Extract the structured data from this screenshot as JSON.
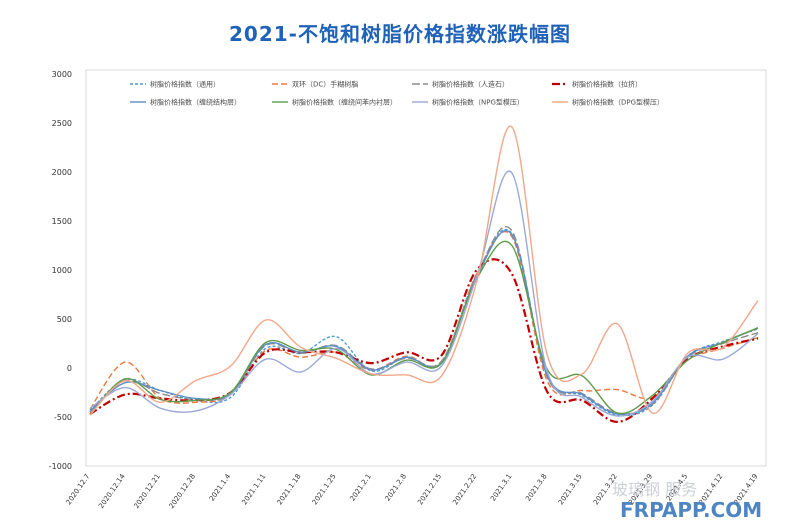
{
  "chart_data": {
    "type": "line",
    "title": "2021-不饱和树脂价格指数涨跌幅图",
    "ylim": [
      -1000,
      3000
    ],
    "yticks": [
      -1000,
      -500,
      0,
      500,
      1000,
      1500,
      2000,
      2500,
      3000
    ],
    "grid": false,
    "legend_position": "top",
    "categories": [
      "2020.12.7",
      "2020.12.14",
      "2020.12.21",
      "2020.12.28",
      "2021.1.4",
      "2021.1.11",
      "2021.1.18",
      "2021.1.25",
      "2021.2.1",
      "2021.2.8",
      "2021.2.15",
      "2021.2.22",
      "2021.3.1",
      "2021.3.8",
      "2021.3.15",
      "2021.3.22",
      "2021.3.29",
      "2021.4.5",
      "2021.4.12",
      "2021.4.19"
    ],
    "series": [
      {
        "name": "树脂价格指数（通用）",
        "color": "#4f9ad6",
        "dash": "3,2",
        "values": [
          -430,
          -120,
          -230,
          -330,
          -300,
          200,
          150,
          320,
          -30,
          110,
          60,
          950,
          1370,
          -80,
          -280,
          -480,
          -380,
          120,
          270,
          400
        ]
      },
      {
        "name": "双环（DC）手糊树脂",
        "color": "#e87b45",
        "dash": "6,3",
        "values": [
          -420,
          60,
          -310,
          -350,
          -270,
          180,
          110,
          160,
          -20,
          120,
          50,
          960,
          1340,
          -130,
          -230,
          -220,
          -300,
          80,
          200,
          310
        ]
      },
      {
        "name": "树脂价格指数（人造石）",
        "color": "#8c8c8c",
        "dash": "8,3",
        "values": [
          -450,
          -130,
          -260,
          -320,
          -270,
          230,
          150,
          230,
          -10,
          100,
          70,
          950,
          1400,
          -90,
          -260,
          -460,
          -370,
          110,
          250,
          360
        ]
      },
      {
        "name": "树脂价格指数（拉挤）",
        "color": "#c00000",
        "dash": "8,3,2,3",
        "values": [
          -470,
          -270,
          -310,
          -330,
          -250,
          160,
          160,
          160,
          50,
          160,
          130,
          1000,
          960,
          -240,
          -330,
          -550,
          -310,
          90,
          220,
          300
        ]
      },
      {
        "name": "树脂价格指数（缠绕结构层）",
        "color": "#5b8fc9",
        "dash": "",
        "values": [
          -440,
          -150,
          -230,
          -310,
          -260,
          240,
          160,
          220,
          -20,
          110,
          50,
          930,
          1360,
          -70,
          -270,
          -470,
          -360,
          120,
          260,
          410
        ]
      },
      {
        "name": "树脂价格指数（缠绕间苯内衬层）",
        "color": "#5f9c4a",
        "dash": "",
        "values": [
          -480,
          -110,
          -320,
          -330,
          -250,
          260,
          180,
          190,
          -70,
          80,
          50,
          910,
          1250,
          -10,
          -80,
          -460,
          -280,
          80,
          260,
          410
        ]
      },
      {
        "name": "树脂价格指数（NPG型模压）",
        "color": "#9aa9d6",
        "dash": "",
        "values": [
          -410,
          -200,
          -410,
          -440,
          -270,
          90,
          -40,
          200,
          -60,
          60,
          20,
          930,
          1990,
          -30,
          -300,
          -490,
          -340,
          110,
          90,
          350
        ]
      },
      {
        "name": "树脂价格指数（DPG型模压）",
        "color": "#f0a78a",
        "dash": "",
        "values": [
          -480,
          -130,
          -350,
          -130,
          20,
          490,
          210,
          100,
          -60,
          -70,
          -80,
          880,
          2460,
          140,
          -60,
          450,
          -460,
          150,
          210,
          690
        ]
      }
    ]
  },
  "watermark": {
    "cn_text": "玻璃钢 服务",
    "en_text": "FRPAPP.COM"
  }
}
